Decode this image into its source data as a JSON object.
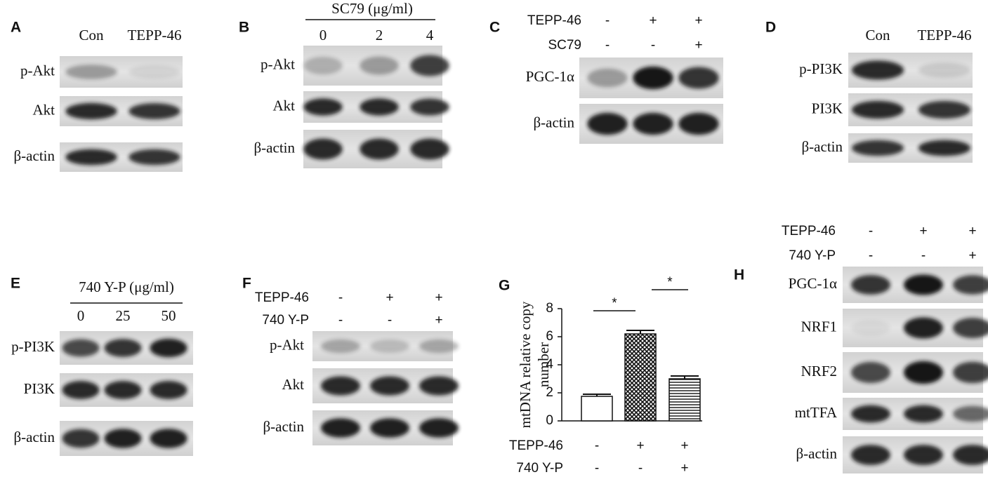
{
  "panels": [
    {
      "letter": "A",
      "columns": [
        "Con",
        "TEPP-46"
      ],
      "rows": [
        "p-Akt",
        "Akt",
        "β-actin"
      ]
    },
    {
      "letter": "B",
      "header": "SC79 (μg/ml)",
      "columns": [
        "0",
        "2",
        "4"
      ],
      "rows": [
        "p-Akt",
        "Akt",
        "β-actin"
      ]
    },
    {
      "letter": "C",
      "treatments": [
        {
          "name": "TEPP-46",
          "signs": [
            "-",
            "+",
            "+"
          ]
        },
        {
          "name": "SC79",
          "signs": [
            "-",
            "-",
            "+"
          ]
        }
      ],
      "rows": [
        "PGC-1α",
        "β-actin"
      ]
    },
    {
      "letter": "D",
      "columns": [
        "Con",
        "TEPP-46"
      ],
      "rows": [
        "p-PI3K",
        "PI3K",
        "β-actin"
      ]
    },
    {
      "letter": "E",
      "header": "740 Y-P (μg/ml)",
      "columns": [
        "0",
        "25",
        "50"
      ],
      "rows": [
        "p-PI3K",
        "PI3K",
        "β-actin"
      ]
    },
    {
      "letter": "F",
      "treatments": [
        {
          "name": "TEPP-46",
          "signs": [
            "-",
            "+",
            "+"
          ]
        },
        {
          "name": "740 Y-P",
          "signs": [
            "-",
            "-",
            "+"
          ]
        }
      ],
      "rows": [
        "p-Akt",
        "Akt",
        "β-actin"
      ]
    },
    {
      "letter": "H",
      "treatments": [
        {
          "name": "TEPP-46",
          "signs": [
            "-",
            "+",
            "+"
          ]
        },
        {
          "name": "740 Y-P",
          "signs": [
            "-",
            "-",
            "+"
          ]
        }
      ],
      "rows": [
        "PGC-1α",
        "NRF1",
        "NRF2",
        "mtTFA",
        "β-actin"
      ]
    }
  ],
  "chart_data": {
    "type": "bar",
    "letter": "G",
    "y_label": [
      "mtDNA relative copy",
      "number"
    ],
    "values": [
      1.75,
      6.2,
      3.0
    ],
    "errors": [
      0.15,
      0.25,
      0.2
    ],
    "ylim": [
      0,
      8
    ],
    "yticks": [
      0,
      2,
      4,
      6,
      8
    ],
    "treatments": [
      {
        "name": "TEPP-46",
        "signs": [
          "-",
          "+",
          "+"
        ]
      },
      {
        "name": "740 Y-P",
        "signs": [
          "-",
          "-",
          "+"
        ]
      }
    ],
    "significance": [
      "*",
      "*"
    ]
  }
}
